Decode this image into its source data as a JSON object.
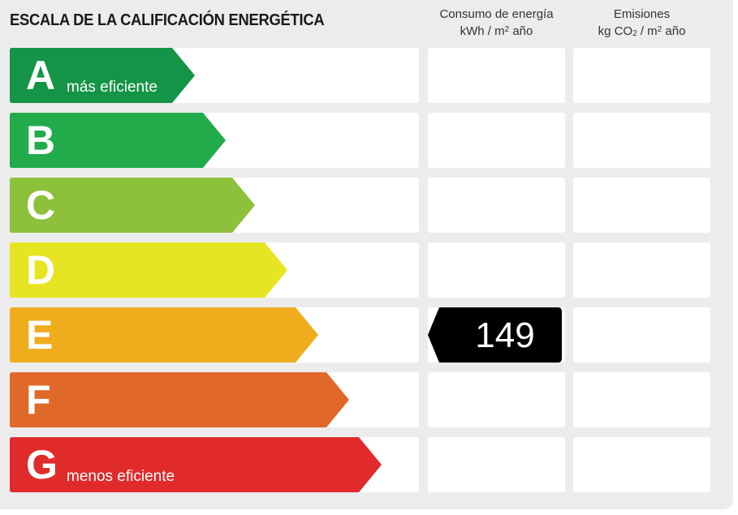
{
  "header": {
    "title": "ESCALA DE LA CALIFICACIÓN ENERGÉTICA",
    "col1": {
      "line1": "Consumo de energía",
      "unit_pre": "kWh / m",
      "unit_sup": "2",
      "unit_post": " año"
    },
    "col2": {
      "line1": "Emisiones",
      "unit_pre": "kg CO",
      "unit_sub": "2",
      "unit_mid": " / m",
      "unit_sup": "2",
      "unit_post": " año"
    }
  },
  "chart_data": {
    "type": "table",
    "ratings": [
      {
        "letter": "A",
        "label": "más eficiente",
        "color": "#149447"
      },
      {
        "letter": "B",
        "label": "",
        "color": "#21ab4b"
      },
      {
        "letter": "C",
        "label": "",
        "color": "#8dc03b"
      },
      {
        "letter": "D",
        "label": "",
        "color": "#e7e521"
      },
      {
        "letter": "E",
        "label": "",
        "color": "#efad1e"
      },
      {
        "letter": "F",
        "label": "",
        "color": "#e0692a"
      },
      {
        "letter": "G",
        "label": "menos eficiente",
        "color": "#e12b2b"
      }
    ],
    "consumption": {
      "rating": "E",
      "value": "149"
    },
    "emissions": {
      "rating": null,
      "value": null
    }
  }
}
